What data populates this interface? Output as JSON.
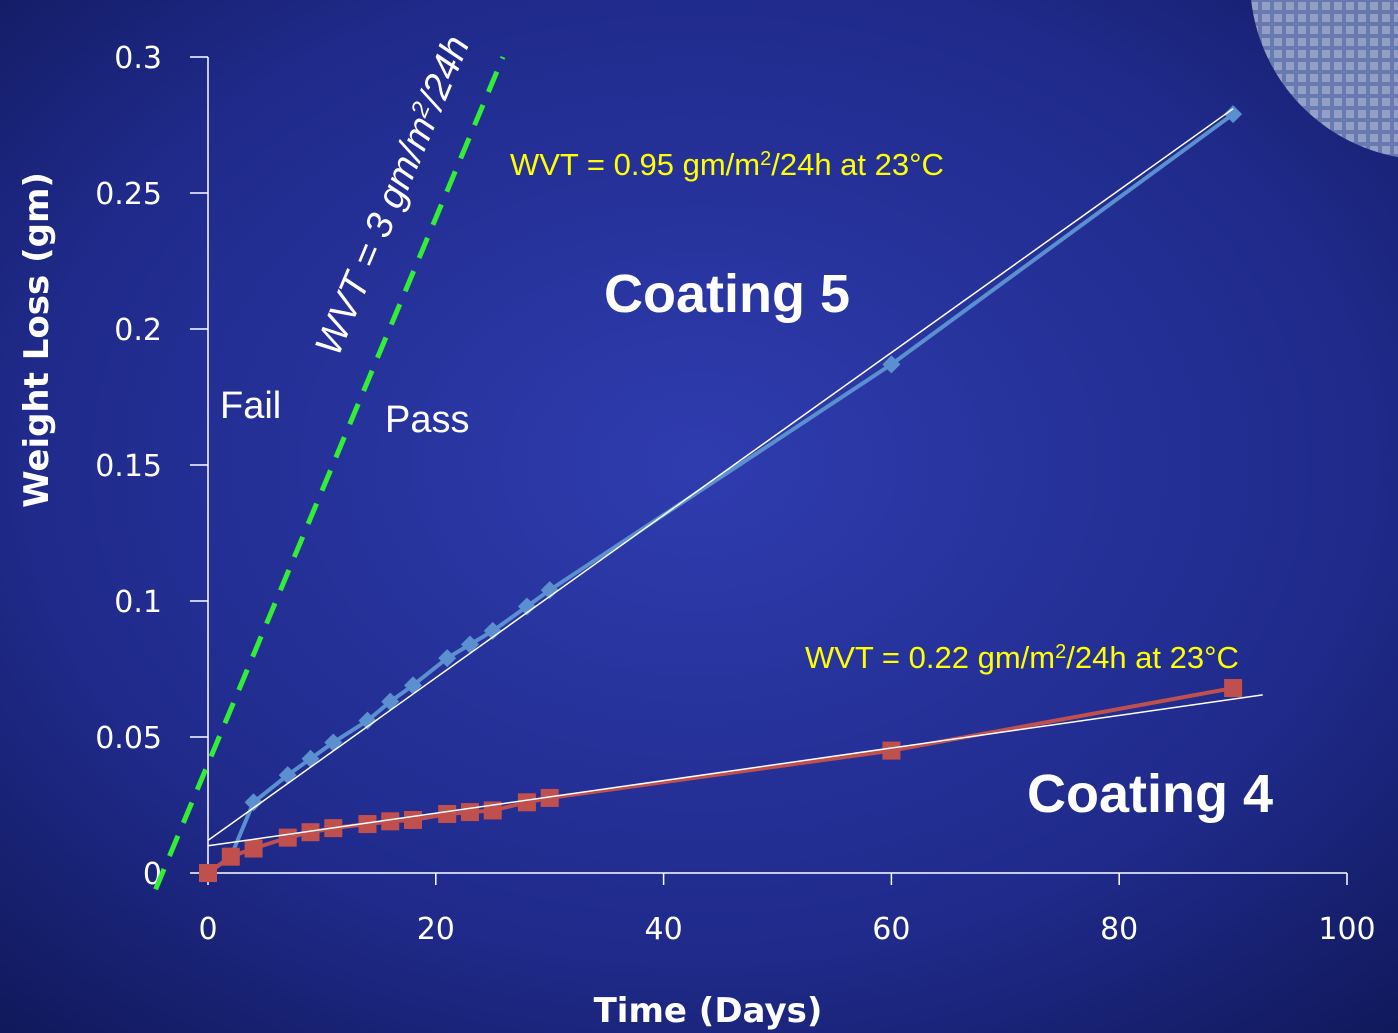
{
  "chart_data": {
    "type": "line",
    "x_label": "Time (Days)",
    "y_label": "Weight Loss (gm)",
    "xlim": [
      0,
      100
    ],
    "xticks": [
      0,
      20,
      40,
      60,
      80,
      100
    ],
    "ylim": [
      0,
      0.3
    ],
    "yticks": [
      0,
      0.05,
      0.1,
      0.15,
      0.2,
      0.25,
      0.3
    ],
    "series": [
      {
        "name": "Coating 5",
        "color": "#5b8fd0",
        "marker": "diamond",
        "x": [
          0,
          2,
          4,
          7,
          9,
          11,
          14,
          16,
          18,
          21,
          23,
          25,
          28,
          30,
          60,
          90
        ],
        "values": [
          0,
          0.006,
          0.026,
          0.036,
          0.042,
          0.048,
          0.056,
          0.063,
          0.069,
          0.079,
          0.084,
          0.089,
          0.098,
          0.104,
          0.187,
          0.279
        ]
      },
      {
        "name": "Coating 4",
        "color": "#c0504d",
        "marker": "square",
        "x": [
          0,
          2,
          4,
          7,
          9,
          11,
          14,
          16,
          18,
          21,
          23,
          25,
          28,
          30,
          60,
          90
        ],
        "values": [
          0,
          0.006,
          0.009,
          0.013,
          0.015,
          0.0165,
          0.018,
          0.019,
          0.0195,
          0.0217,
          0.0224,
          0.023,
          0.026,
          0.0276,
          0.045,
          0.068
        ]
      }
    ],
    "trendlines": [
      {
        "color": "#ffffff",
        "x": [
          0,
          90
        ],
        "values": [
          0.012,
          0.281
        ]
      },
      {
        "color": "#ffffff",
        "x": [
          0,
          92.6
        ],
        "values": [
          0.01,
          0.0655
        ]
      }
    ],
    "threshold": {
      "color": "#33ee33",
      "x": [
        -4.6,
        25.9
      ],
      "values": [
        -0.006,
        0.3
      ],
      "label": [
        "WVT = 3 gm/m",
        "2",
        "/24h"
      ]
    },
    "annotations": {
      "wvt5": [
        "WVT = 0.95 gm/m",
        "2",
        "/24h  at 23°C"
      ],
      "wvt4": [
        "WVT = 0.22 gm/m",
        "2",
        "/24h at 23°C"
      ],
      "fail": "Fail",
      "pass": "Pass"
    }
  }
}
